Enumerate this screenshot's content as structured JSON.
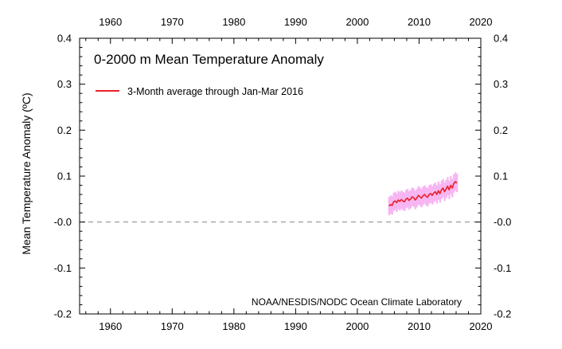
{
  "chart_data": {
    "type": "line",
    "title": "0-2000 m Mean Temperature Anomaly",
    "ylabel": "Mean Temperature Anomaly (ºC)",
    "xlabel": "",
    "credit": "NOAA/NESDIS/NODC Ocean Climate Laboratory",
    "xlim": [
      1955,
      2020
    ],
    "ylim": [
      -0.2,
      0.4
    ],
    "x_ticks": [
      1960,
      1970,
      1980,
      1990,
      2000,
      2010,
      2020
    ],
    "y_ticks": [
      -0.2,
      -0.1,
      0.0,
      0.1,
      0.2,
      0.3,
      0.4
    ],
    "y_tick_labels": [
      "-0.2",
      "-0.1",
      "-0.0",
      "0.1",
      "0.2",
      "0.3",
      "0.4"
    ],
    "zero_line": true,
    "legend_position": "top-left",
    "colors": {
      "line": "#e8202a",
      "band": "#f7b6f2",
      "zero": "#888888"
    },
    "series": [
      {
        "name": "3-Month average through Jan-Mar 2016",
        "x": [
          2005.125,
          2005.375,
          2005.625,
          2005.875,
          2006.125,
          2006.375,
          2006.625,
          2006.875,
          2007.125,
          2007.375,
          2007.625,
          2007.875,
          2008.125,
          2008.375,
          2008.625,
          2008.875,
          2009.125,
          2009.375,
          2009.625,
          2009.875,
          2010.125,
          2010.375,
          2010.625,
          2010.875,
          2011.125,
          2011.375,
          2011.625,
          2011.875,
          2012.125,
          2012.375,
          2012.625,
          2012.875,
          2013.125,
          2013.375,
          2013.625,
          2013.875,
          2014.125,
          2014.375,
          2014.625,
          2014.875,
          2015.125,
          2015.375,
          2015.625,
          2015.875,
          2016.125
        ],
        "values": [
          0.035,
          0.038,
          0.036,
          0.044,
          0.046,
          0.042,
          0.048,
          0.045,
          0.049,
          0.046,
          0.044,
          0.05,
          0.052,
          0.047,
          0.05,
          0.055,
          0.053,
          0.048,
          0.052,
          0.058,
          0.055,
          0.052,
          0.057,
          0.06,
          0.056,
          0.054,
          0.06,
          0.062,
          0.058,
          0.063,
          0.066,
          0.06,
          0.068,
          0.062,
          0.07,
          0.074,
          0.066,
          0.072,
          0.078,
          0.07,
          0.08,
          0.074,
          0.084,
          0.088,
          0.085
        ],
        "uncertainty": 0.02
      }
    ]
  }
}
